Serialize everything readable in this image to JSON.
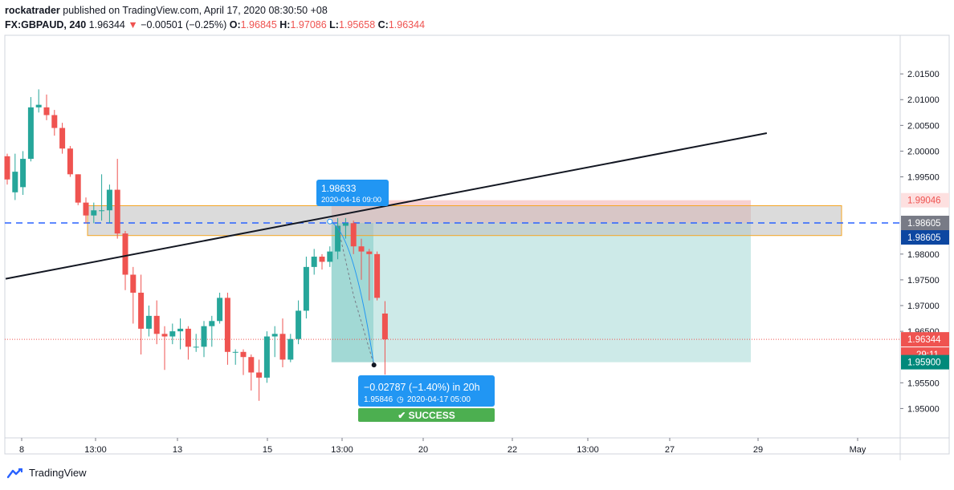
{
  "header": {
    "publisher": "rockatrader",
    "published_text": "published on TradingView.com, April 17, 2020 08:30:50 +08",
    "symbol": "FX:GBPAUD, 240",
    "last": "1.96344",
    "change": "−0.00501 (−0.25%)",
    "o_label": "O:",
    "o_value": "1.96845",
    "h_label": "H:",
    "h_value": "1.97086",
    "l_label": "L:",
    "l_value": "1.95658",
    "c_label": "C:",
    "c_value": "1.96344"
  },
  "chart_data": {
    "type": "candlestick",
    "ylim": [
      1.9443,
      2.0225
    ],
    "y_ticks": [
      {
        "v": 2.015,
        "label": "2.01500"
      },
      {
        "v": 2.01,
        "label": "2.01000"
      },
      {
        "v": 2.005,
        "label": "2.00500"
      },
      {
        "v": 2.0,
        "label": "2.00000"
      },
      {
        "v": 1.995,
        "label": "1.99500"
      },
      {
        "v": 1.98,
        "label": "1.98000"
      },
      {
        "v": 1.975,
        "label": "1.97500"
      },
      {
        "v": 1.97,
        "label": "1.97000"
      },
      {
        "v": 1.965,
        "label": "1.96500"
      },
      {
        "v": 1.955,
        "label": "1.95500"
      },
      {
        "v": 1.95,
        "label": "1.95000"
      }
    ],
    "x_ticks": [
      "8",
      "13:00",
      "13",
      "15",
      "13:00",
      "20",
      "22",
      "13:00",
      "27",
      "29",
      "May"
    ],
    "candles": [
      [
        1.999,
        1.9995,
        1.9935,
        1.9945
      ],
      [
        1.992,
        1.9995,
        1.9905,
        1.996
      ],
      [
        1.993,
        2.0,
        1.9915,
        1.9985
      ],
      [
        1.9985,
        2.0105,
        1.998,
        2.0085
      ],
      [
        2.0085,
        2.012,
        2.0075,
        2.009
      ],
      [
        2.0085,
        2.011,
        2.006,
        2.007
      ],
      [
        2.007,
        2.008,
        2.003,
        2.0045
      ],
      [
        2.0045,
        2.0055,
        1.9995,
        2.0005
      ],
      [
        2.0005,
        2.001,
        1.995,
        1.9955
      ],
      [
        1.9955,
        1.9955,
        1.9895,
        1.99
      ],
      [
        1.99,
        1.991,
        1.986,
        1.9875
      ],
      [
        1.9875,
        1.99,
        1.986,
        1.9885
      ],
      [
        1.9885,
        1.9955,
        1.9865,
        1.9885
      ],
      [
        1.9885,
        1.9935,
        1.986,
        1.9925
      ],
      [
        1.9925,
        1.9985,
        1.983,
        1.984
      ],
      [
        1.984,
        1.9845,
        1.973,
        1.976
      ],
      [
        1.976,
        1.9775,
        1.9665,
        1.9725
      ],
      [
        1.9725,
        1.976,
        1.9605,
        1.9655
      ],
      [
        1.9655,
        1.97,
        1.964,
        1.968
      ],
      [
        1.968,
        1.971,
        1.9625,
        1.9645
      ],
      [
        1.9645,
        1.966,
        1.9575,
        1.964
      ],
      [
        1.964,
        1.9665,
        1.9625,
        1.965
      ],
      [
        1.965,
        1.9675,
        1.9615,
        1.9655
      ],
      [
        1.9655,
        1.966,
        1.9595,
        1.962
      ],
      [
        1.962,
        1.9645,
        1.961,
        1.962
      ],
      [
        1.962,
        1.967,
        1.96,
        1.966
      ],
      [
        1.966,
        1.968,
        1.962,
        1.967
      ],
      [
        1.967,
        1.9725,
        1.9665,
        1.9715
      ],
      [
        1.9715,
        1.9725,
        1.9585,
        1.961
      ],
      [
        1.961,
        1.9615,
        1.9585,
        1.961
      ],
      [
        1.961,
        1.9615,
        1.9565,
        1.96
      ],
      [
        1.96,
        1.9605,
        1.9535,
        1.957
      ],
      [
        1.957,
        1.9595,
        1.9515,
        1.956
      ],
      [
        1.956,
        1.965,
        1.955,
        1.964
      ],
      [
        1.964,
        1.966,
        1.96,
        1.9645
      ],
      [
        1.9645,
        1.9675,
        1.958,
        1.9595
      ],
      [
        1.9595,
        1.9645,
        1.959,
        1.9635
      ],
      [
        1.9635,
        1.971,
        1.9625,
        1.969
      ],
      [
        1.969,
        1.9795,
        1.9675,
        1.9775
      ],
      [
        1.9775,
        1.981,
        1.976,
        1.9795
      ],
      [
        1.9795,
        1.98,
        1.977,
        1.9785
      ],
      [
        1.9785,
        1.9815,
        1.9775,
        1.9805
      ],
      [
        1.9805,
        1.987,
        1.979,
        1.9855
      ],
      [
        1.9855,
        1.987,
        1.983,
        1.986
      ],
      [
        1.986,
        1.9865,
        1.98,
        1.9815
      ],
      [
        1.9815,
        1.983,
        1.975,
        1.9805
      ],
      [
        1.9805,
        1.981,
        1.971,
        1.98
      ],
      [
        1.98,
        1.9805,
        1.971,
        1.9715
      ],
      [
        1.96845,
        1.97086,
        1.95658,
        1.96344
      ]
    ],
    "trendline": {
      "from": [
        -0.2,
        1.9752
      ],
      "to": [
        45.5,
        2.0035
      ]
    },
    "zone": {
      "top": 1.9894,
      "bottom": 1.9836
    },
    "dashed_level": 1.98605,
    "current_price_line": 1.96344,
    "position": {
      "entry": 1.98605,
      "stop": 1.99046,
      "target": 1.959,
      "start_index": 41,
      "end_index": 45.5
    },
    "tooltip": {
      "price": "1.98633",
      "time": "2020-04-16 09:00"
    },
    "result": {
      "line1": "−0.02787 (−1.40%) in 20h",
      "line2_price": "1.95846",
      "line2_time": "2020-04-17  05:00",
      "badge": "✔ SUCCESS"
    },
    "price_labels": {
      "stop": "1.99046",
      "dashed": "1.98605",
      "entry": "1.98605",
      "current": "1.96344",
      "countdown": "29:11",
      "target": "1.95900"
    }
  },
  "colors": {
    "up": "#26a69a",
    "down": "#ef5350",
    "stop_fill": "#f5c2c2",
    "target_fill": "#b2dfdb",
    "zone_fill": "#bdbdbd",
    "zone_border": "#f5a623",
    "dashed": "#2962ff",
    "tooltip": "#2196f3",
    "success": "#4caf50"
  },
  "footer": {
    "brand": "TradingView",
    "logo_icon": "tradingview-logo-icon"
  }
}
